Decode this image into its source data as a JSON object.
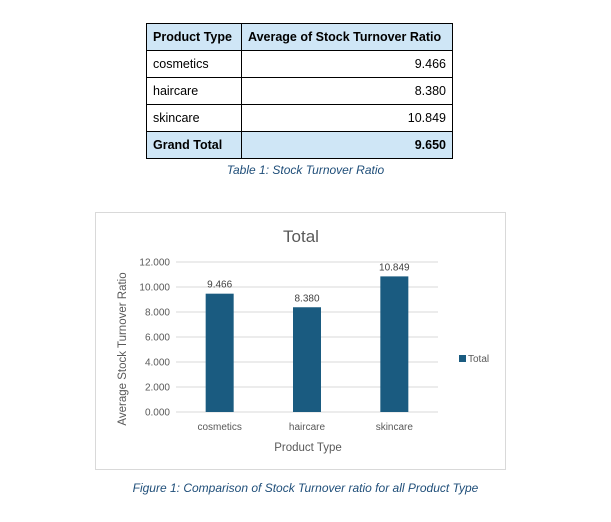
{
  "table": {
    "headers": [
      "Product Type",
      "Average of Stock Turnover Ratio"
    ],
    "rows": [
      {
        "label": "cosmetics",
        "value": "9.466"
      },
      {
        "label": "haircare",
        "value": "8.380"
      },
      {
        "label": "skincare",
        "value": "10.849"
      }
    ],
    "total": {
      "label": "Grand Total",
      "value": "9.650"
    },
    "caption": "Table 1: Stock Turnover Ratio",
    "header_color": "#cfe6f6"
  },
  "figure_caption": "Figure 1: Comparison of Stock Turnover ratio for all Product Type",
  "chart_data": {
    "type": "bar",
    "title": "Total",
    "xlabel": "Product Type",
    "ylabel": "Average Stock Turnover Ratio",
    "categories": [
      "cosmetics",
      "haircare",
      "skincare"
    ],
    "series": [
      {
        "name": "Total",
        "values": [
          9.466,
          8.38,
          10.849
        ],
        "labels": [
          "9.466",
          "8.380",
          "10.849"
        ],
        "color": "#1a5b80"
      }
    ],
    "ylim": [
      0,
      12
    ],
    "yticks": [
      "0.000",
      "2.000",
      "4.000",
      "6.000",
      "8.000",
      "10.000",
      "12.000"
    ],
    "grid": true,
    "legend": "right"
  }
}
